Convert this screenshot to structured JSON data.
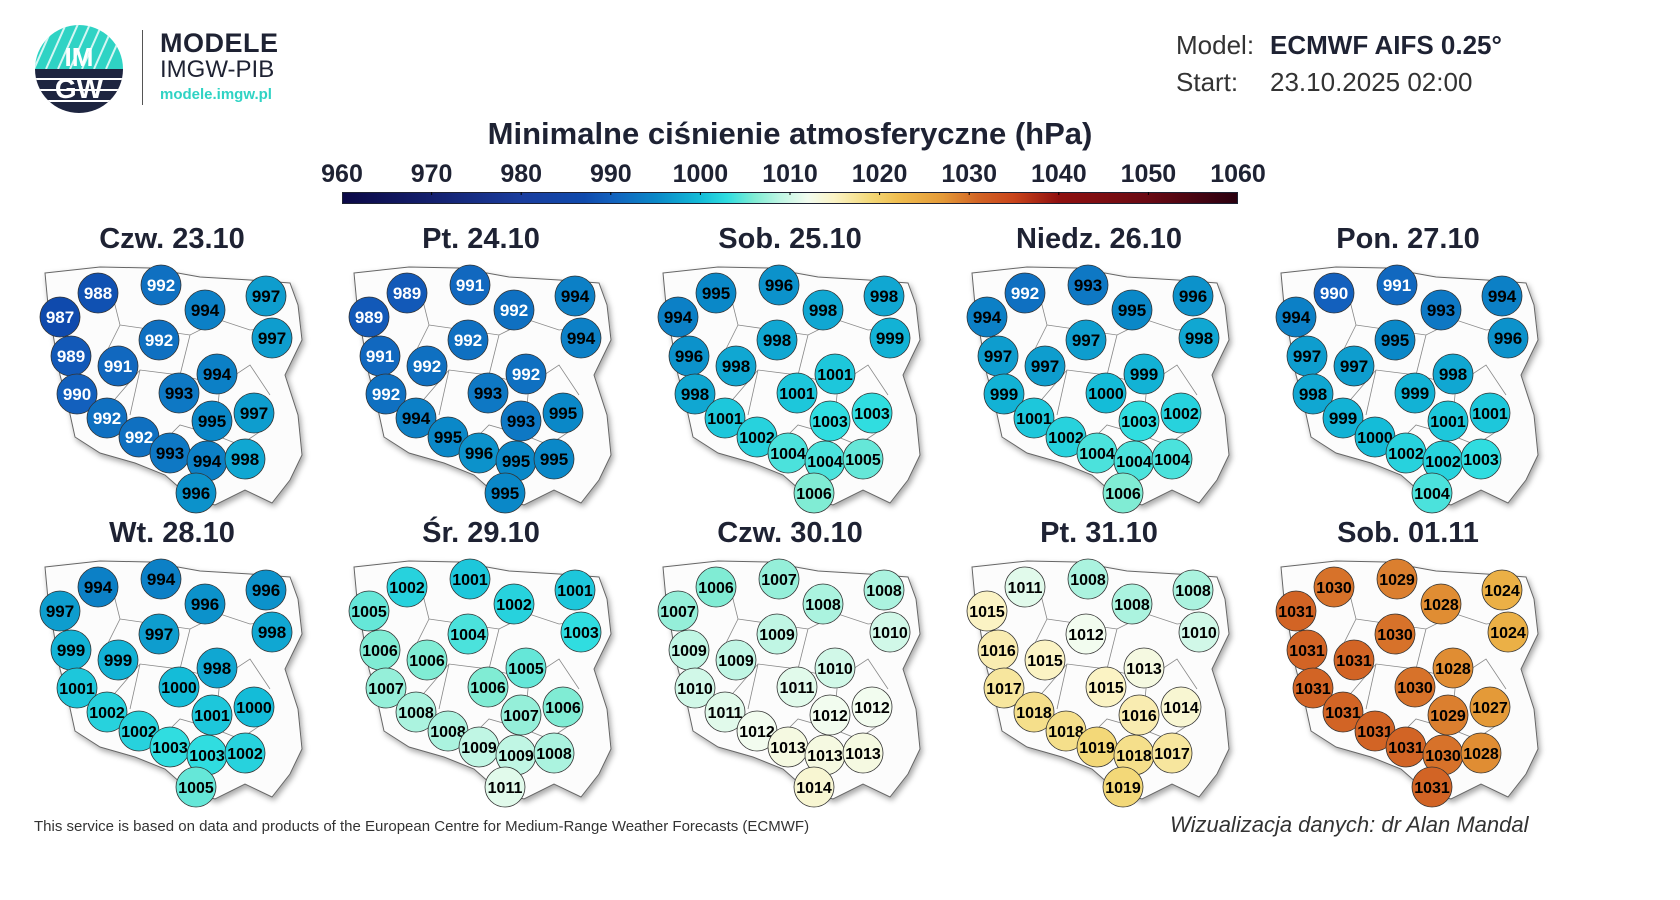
{
  "header": {
    "logo_lettering": "IMGW",
    "brand_title": "MODELE",
    "brand_subtitle": "IMGW-PIB",
    "brand_url": "modele.imgw.pl",
    "model_label": "Model:",
    "model_value": "ECMWF AIFS 0.25°",
    "start_label": "Start:",
    "start_value": "23.10.2025 02:00"
  },
  "chart_data": {
    "type": "map-station-values",
    "title": "Minimalne ciśnienie atmosferyczne (hPa)",
    "colorbar": {
      "ticks": [
        "960",
        "970",
        "980",
        "990",
        "1000",
        "1010",
        "1020",
        "1030",
        "1040",
        "1050",
        "1060"
      ],
      "range": [
        960,
        1060
      ],
      "colors": [
        "#0b0846",
        "#14206e",
        "#1a3d9e",
        "#1360bd",
        "#14bcd8",
        "#f2fcef",
        "#f3d878",
        "#e49a38",
        "#c9441b",
        "#901010",
        "#2a0010"
      ]
    },
    "panels": [
      {
        "title": "Czw. 23.10",
        "values": [
          988,
          992,
          994,
          997,
          987,
          992,
          997,
          989,
          991,
          994,
          993,
          990,
          995,
          997,
          992,
          992,
          993,
          994,
          998,
          996
        ]
      },
      {
        "title": "Pt. 24.10",
        "values": [
          989,
          991,
          992,
          994,
          989,
          992,
          994,
          991,
          992,
          992,
          993,
          992,
          993,
          995,
          994,
          995,
          996,
          995,
          995,
          995
        ]
      },
      {
        "title": "Sob. 25.10",
        "values": [
          995,
          996,
          998,
          998,
          994,
          998,
          999,
          996,
          998,
          1001,
          1001,
          998,
          1003,
          1003,
          1001,
          1002,
          1004,
          1004,
          1005,
          1006
        ]
      },
      {
        "title": "Niedz. 26.10",
        "values": [
          992,
          993,
          995,
          996,
          994,
          997,
          998,
          997,
          997,
          999,
          1000,
          999,
          1003,
          1002,
          1001,
          1002,
          1004,
          1004,
          1004,
          1006
        ]
      },
      {
        "title": "Pon. 27.10",
        "values": [
          990,
          991,
          993,
          994,
          994,
          995,
          996,
          997,
          997,
          998,
          999,
          998,
          1001,
          1001,
          999,
          1000,
          1002,
          1002,
          1003,
          1004
        ]
      },
      {
        "title": "Wt. 28.10",
        "values": [
          994,
          994,
          996,
          996,
          997,
          997,
          998,
          999,
          999,
          998,
          1000,
          1001,
          1001,
          1000,
          1002,
          1002,
          1003,
          1003,
          1002,
          1005
        ]
      },
      {
        "title": "Śr. 29.10",
        "values": [
          1002,
          1001,
          1002,
          1001,
          1005,
          1004,
          1003,
          1006,
          1006,
          1005,
          1006,
          1007,
          1007,
          1006,
          1008,
          1008,
          1009,
          1009,
          1008,
          1011
        ]
      },
      {
        "title": "Czw. 30.10",
        "values": [
          1006,
          1007,
          1008,
          1008,
          1007,
          1009,
          1010,
          1009,
          1009,
          1010,
          1011,
          1010,
          1012,
          1012,
          1011,
          1012,
          1013,
          1013,
          1013,
          1014
        ]
      },
      {
        "title": "Pt. 31.10",
        "values": [
          1011,
          1008,
          1008,
          1008,
          1015,
          1012,
          1010,
          1016,
          1015,
          1013,
          1015,
          1017,
          1016,
          1014,
          1018,
          1018,
          1019,
          1018,
          1017,
          1019
        ]
      },
      {
        "title": "Sob. 01.11",
        "values": [
          1030,
          1029,
          1028,
          1024,
          1031,
          1030,
          1024,
          1031,
          1031,
          1028,
          1030,
          1031,
          1029,
          1027,
          1031,
          1031,
          1031,
          1030,
          1028,
          1031
        ]
      }
    ]
  },
  "footer": {
    "attribution": "This service is based on data and products of the European Centre for Medium-Range Weather Forecasts (ECMWF)",
    "credit": "Wizualizacja danych: dr Alan Mandal"
  }
}
